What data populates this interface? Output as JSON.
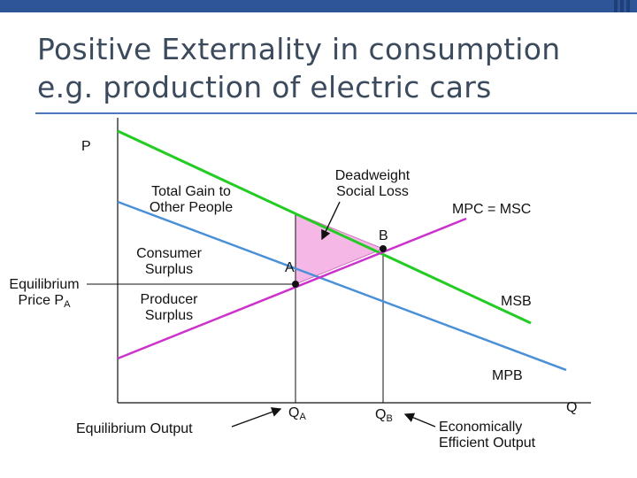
{
  "header": {
    "title_line1": "Positive Externality in consumption",
    "title_line2": "e.g. production of electric cars"
  },
  "colors": {
    "topbar": "#2e5597",
    "msb_line": "#22cc22",
    "mpb_line": "#4a90d9",
    "mpc_msc_line": "#cc33cc",
    "deadweight_fill": "#f5b8e6",
    "title_text": "#3b4a5c",
    "divider": "#4a78c0"
  },
  "labels": {
    "p_axis": "P",
    "q_axis": "Q",
    "total_gain_line1": "Total Gain to",
    "total_gain_line2": "Other People",
    "deadweight_line1": "Deadweight",
    "deadweight_line2": "Social Loss",
    "mpc_msc": "MPC = MSC",
    "point_b": "B",
    "consumer_surplus_line1": "Consumer",
    "consumer_surplus_line2": "Surplus",
    "point_a": "A",
    "eq_price_line1": "Equilibrium",
    "eq_price_line2_prefix": "Price P",
    "eq_price_sub": "A",
    "producer_surplus_line1": "Producer",
    "producer_surplus_line2": "Surplus",
    "msb": "MSB",
    "mpb": "MPB",
    "eq_output": "Equilibrium Output",
    "qa_prefix": "Q",
    "qa_sub": "A",
    "qb_prefix": "Q",
    "qb_sub": "B",
    "eff_output_line1": "Economically",
    "eff_output_line2": "Efficient Output"
  }
}
